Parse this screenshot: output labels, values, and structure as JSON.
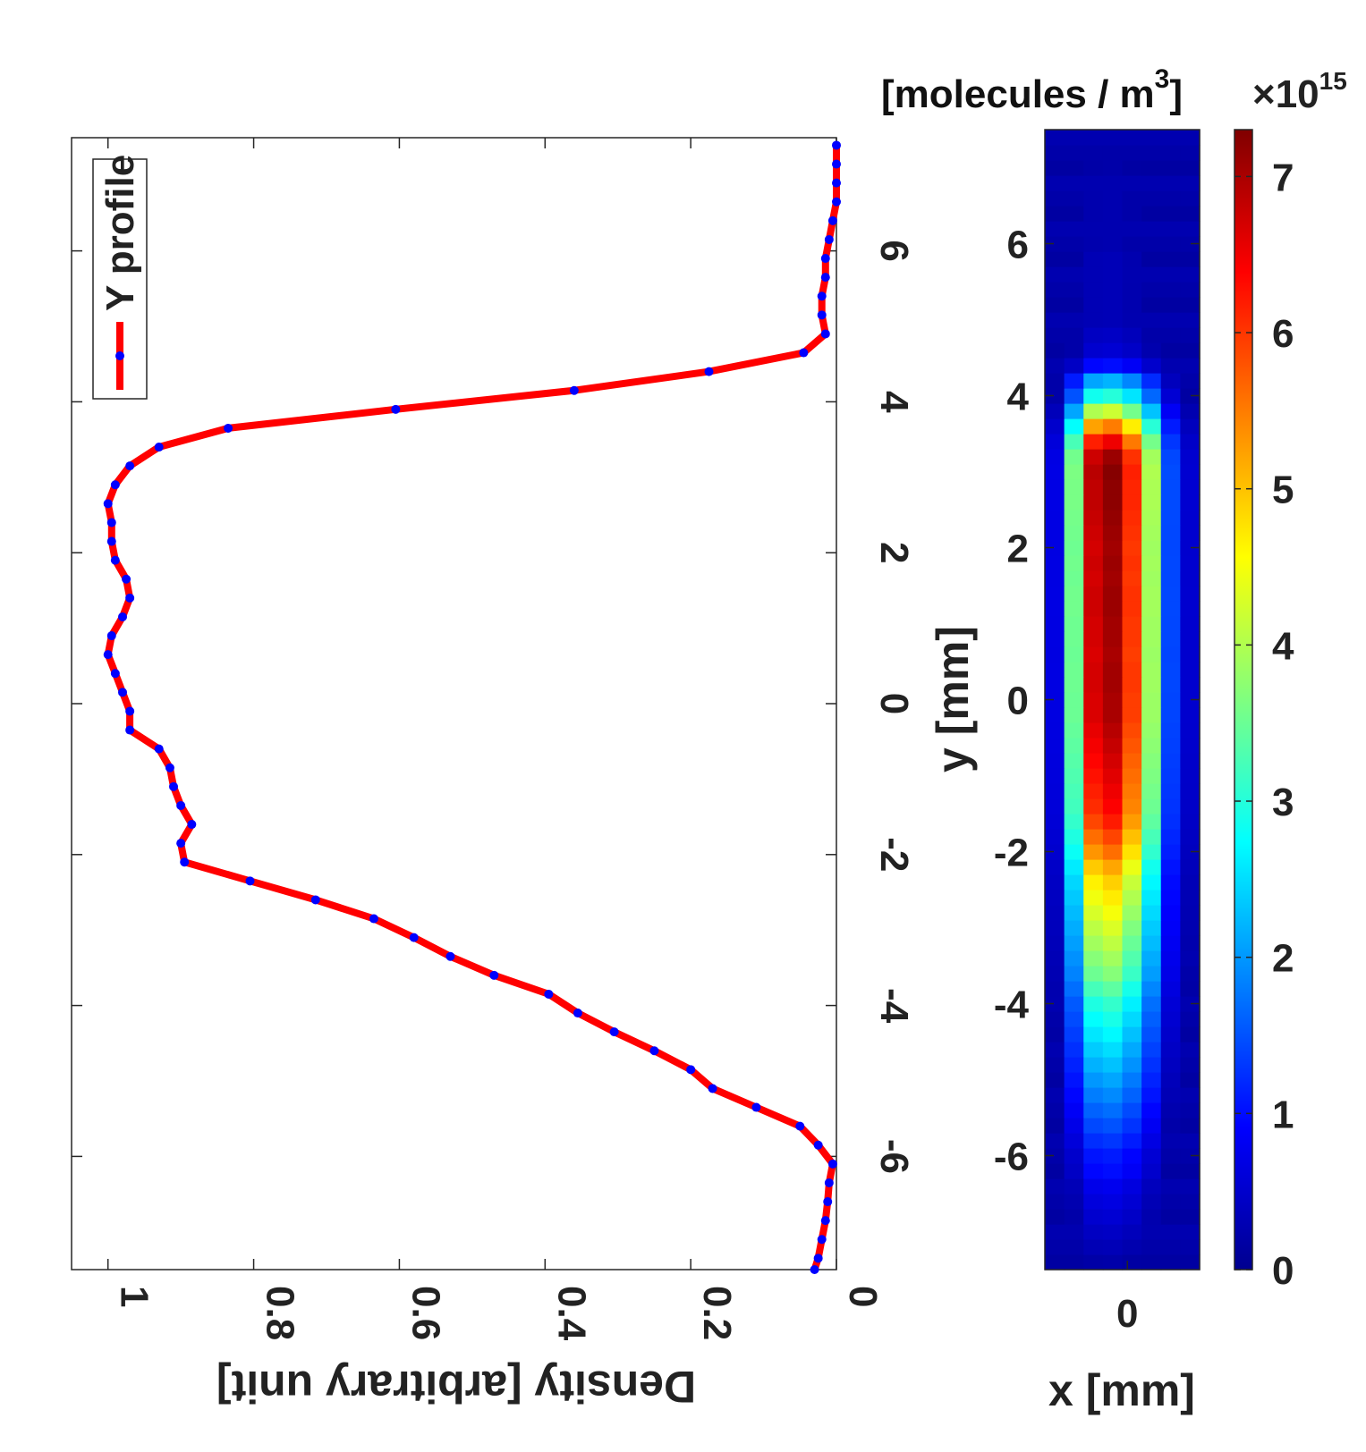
{
  "chart_data": [
    {
      "type": "line",
      "orientation": "rotated-90",
      "xlabel": "Density [arbitrary unit]",
      "xlim": [
        0,
        1.05
      ],
      "xticks": [
        0,
        0.2,
        0.4,
        0.6,
        0.8,
        1
      ],
      "xtick_labels": [
        "0",
        "0.2",
        "0.4",
        "0.6",
        "0.8",
        "1"
      ],
      "ylim": [
        -7.5,
        7.5
      ],
      "yticks": [
        -6,
        -4,
        -2,
        0,
        2,
        4,
        6
      ],
      "ytick_labels": [
        "-6",
        "-4",
        "-2",
        "0",
        "2",
        "4",
        "6"
      ],
      "legend": {
        "placement": "top-left",
        "entry": "Y profile"
      },
      "line_color": "#ff0000",
      "marker_color": "#0000ff",
      "series": [
        {
          "name": "Y profile",
          "y": [
            -7.5,
            -7.35,
            -7.1,
            -6.85,
            -6.6,
            -6.35,
            -6.1,
            -5.85,
            -5.6,
            -5.35,
            -5.1,
            -4.85,
            -4.6,
            -4.35,
            -4.1,
            -3.85,
            -3.6,
            -3.35,
            -3.1,
            -2.85,
            -2.6,
            -2.35,
            -2.1,
            -1.85,
            -1.6,
            -1.35,
            -1.1,
            -0.85,
            -0.6,
            -0.35,
            -0.1,
            0.15,
            0.4,
            0.65,
            0.9,
            1.15,
            1.4,
            1.65,
            1.9,
            2.15,
            2.4,
            2.65,
            2.9,
            3.15,
            3.4,
            3.65,
            3.9,
            4.15,
            4.4,
            4.65,
            4.9,
            5.15,
            5.4,
            5.65,
            5.9,
            6.15,
            6.4,
            6.65,
            6.9,
            7.15,
            7.4
          ],
          "values": [
            0.03,
            0.025,
            0.02,
            0.015,
            0.012,
            0.01,
            0.005,
            0.025,
            0.05,
            0.11,
            0.17,
            0.2,
            0.25,
            0.305,
            0.355,
            0.395,
            0.47,
            0.53,
            0.58,
            0.635,
            0.715,
            0.805,
            0.895,
            0.9,
            0.885,
            0.9,
            0.91,
            0.915,
            0.93,
            0.97,
            0.97,
            0.98,
            0.99,
            1.0,
            0.995,
            0.98,
            0.97,
            0.975,
            0.99,
            0.995,
            0.995,
            1.0,
            0.99,
            0.97,
            0.93,
            0.835,
            0.605,
            0.36,
            0.175,
            0.045,
            0.015,
            0.02,
            0.02,
            0.015,
            0.015,
            0.01,
            0.005,
            0.0,
            0.0,
            0.0,
            0.0
          ]
        }
      ]
    },
    {
      "type": "heatmap",
      "xlabel": "x [mm]",
      "ylabel": "y [mm]",
      "xticks": [
        0
      ],
      "xtick_labels": [
        "0"
      ],
      "xlim": [
        -2,
        1.75
      ],
      "ylim": [
        -7.5,
        7.5
      ],
      "yticks": [
        -6,
        -4,
        -2,
        0,
        2,
        4,
        6
      ],
      "ytick_labels": [
        "-6",
        "-4",
        "-2",
        "0",
        "2",
        "4",
        "6"
      ],
      "colorbar": {
        "label": "[molecules / m",
        "label_sup": "3",
        "label_end": "]",
        "multiplier": "×10",
        "multiplier_exp": "15",
        "range": [
          0,
          7.3
        ],
        "ticks": [
          0,
          1,
          2,
          3,
          4,
          5,
          6,
          7
        ],
        "tick_labels": [
          "0",
          "1",
          "2",
          "3",
          "4",
          "5",
          "6",
          "7"
        ],
        "colormap": "jet"
      },
      "columns": 8,
      "column_profile": [
        0.1,
        0.5,
        0.95,
        1.0,
        0.85,
        0.55,
        0.2,
        0.08
      ],
      "row_y": [
        -7.4,
        -7.2,
        -7.0,
        -6.8,
        -6.6,
        -6.4,
        -6.2,
        -6.0,
        -5.8,
        -5.6,
        -5.4,
        -5.2,
        -5.0,
        -4.8,
        -4.6,
        -4.4,
        -4.2,
        -4.0,
        -3.8,
        -3.6,
        -3.4,
        -3.2,
        -3.0,
        -2.8,
        -2.6,
        -2.4,
        -2.2,
        -2.0,
        -1.8,
        -1.6,
        -1.4,
        -1.2,
        -1.0,
        -0.8,
        -0.6,
        -0.4,
        -0.2,
        0.0,
        0.2,
        0.4,
        0.6,
        0.8,
        1.0,
        1.2,
        1.4,
        1.6,
        1.8,
        2.0,
        2.2,
        2.4,
        2.6,
        2.8,
        3.0,
        3.2,
        3.4,
        3.6,
        3.8,
        4.0,
        4.2,
        4.4,
        4.6,
        4.8,
        5.0,
        5.2,
        5.4,
        5.6,
        5.8,
        6.0,
        6.2,
        6.4,
        6.6,
        6.8,
        7.0,
        7.2,
        7.4
      ],
      "row_peak": [
        0.3,
        0.4,
        0.5,
        0.6,
        0.7,
        0.8,
        1.0,
        1.1,
        1.3,
        1.5,
        1.7,
        1.9,
        2.1,
        2.3,
        2.5,
        2.7,
        2.9,
        3.1,
        3.4,
        3.7,
        3.9,
        4.1,
        4.3,
        4.5,
        4.7,
        4.9,
        5.2,
        5.6,
        5.9,
        6.2,
        6.4,
        6.5,
        6.6,
        6.7,
        6.8,
        6.9,
        7.0,
        7.0,
        7.05,
        7.05,
        7.0,
        7.05,
        7.05,
        7.1,
        7.1,
        7.05,
        7.1,
        7.05,
        7.1,
        7.15,
        7.2,
        7.2,
        7.25,
        7.1,
        6.5,
        5.5,
        4.2,
        3.0,
        2.2,
        1.0,
        0.6,
        0.5,
        0.4,
        0.4,
        0.4,
        0.4,
        0.4,
        0.35,
        0.35,
        0.35,
        0.35,
        0.3,
        0.3,
        0.3,
        0.3
      ]
    }
  ]
}
